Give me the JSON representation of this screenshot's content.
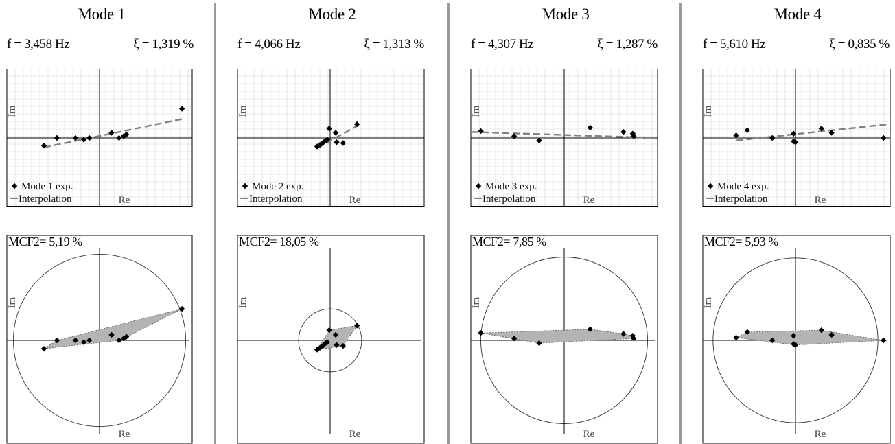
{
  "chart_data": [
    {
      "type": "scatter",
      "title": "Mode 1",
      "frequency": "f = 3,458 Hz",
      "damping": "ξ = 1,319 %",
      "xlabel": "Re",
      "ylabel": "Im",
      "legend": {
        "points": "Mode 1 exp.",
        "line": "Interpolation"
      },
      "mcf_label": "MCF2= 5,19 %",
      "points": [
        [
          -0.6,
          -0.09
        ],
        [
          -0.46,
          0.0
        ],
        [
          -0.26,
          0.0
        ],
        [
          -0.17,
          -0.02
        ],
        [
          -0.11,
          0.0
        ],
        [
          0.13,
          0.06
        ],
        [
          0.21,
          0.0
        ],
        [
          0.26,
          0.02
        ],
        [
          0.29,
          0.04
        ],
        [
          0.89,
          0.34
        ]
      ],
      "fit_line": {
        "x": [
          -0.6,
          0.89
        ],
        "y": [
          -0.11,
          0.22
        ]
      },
      "circle_radius": 0.93
    },
    {
      "type": "scatter",
      "title": "Mode 2",
      "frequency": "f = 4,066 Hz",
      "damping": "ξ = 1,313 %",
      "xlabel": "Re",
      "ylabel": "Im",
      "legend": {
        "points": "Mode 2 exp.",
        "line": "Interpolation"
      },
      "mcf_label": "MCF2= 18,05 %",
      "points": [
        [
          -0.14,
          -0.1
        ],
        [
          -0.11,
          -0.08
        ],
        [
          -0.08,
          -0.06
        ],
        [
          -0.05,
          -0.03
        ],
        [
          -0.03,
          -0.02
        ],
        [
          -0.01,
          0.11
        ],
        [
          0.06,
          0.06
        ],
        [
          0.07,
          -0.05
        ],
        [
          0.14,
          -0.06
        ],
        [
          0.29,
          0.16
        ]
      ],
      "fit_line": {
        "x": [
          -0.14,
          0.29
        ],
        "y": [
          -0.12,
          0.14
        ]
      },
      "circle_radius": 0.34
    },
    {
      "type": "scatter",
      "title": "Mode 3",
      "frequency": "f = 4,307 Hz",
      "damping": "ξ = 1,287 %",
      "xlabel": "Re",
      "ylabel": "Im",
      "legend": {
        "points": "Mode 3 exp.",
        "line": "Interpolation"
      },
      "mcf_label": "MCF2= 7,85 %",
      "points": [
        [
          -0.9,
          0.08
        ],
        [
          -0.54,
          0.02
        ],
        [
          -0.27,
          -0.03
        ],
        [
          0.28,
          0.12
        ],
        [
          0.64,
          0.07
        ],
        [
          0.74,
          0.05
        ],
        [
          0.75,
          0.02
        ]
      ],
      "fit_line": {
        "x": [
          -1.0,
          1.0
        ],
        "y": [
          0.07,
          0.0
        ]
      },
      "circle_radius": 0.9
    },
    {
      "type": "scatter",
      "title": "Mode 4",
      "frequency": "f = 5,610 Hz",
      "damping": "ξ = 0,835 %",
      "xlabel": "Re",
      "ylabel": "Im",
      "legend": {
        "points": "Mode 4 exp.",
        "line": "Interpolation"
      },
      "mcf_label": "MCF2= 5,93 %",
      "points": [
        [
          -0.64,
          0.03
        ],
        [
          -0.52,
          0.09
        ],
        [
          -0.25,
          0.0
        ],
        [
          -0.02,
          0.05
        ],
        [
          -0.02,
          -0.04
        ],
        [
          0.0,
          -0.05
        ],
        [
          0.28,
          0.11
        ],
        [
          0.39,
          0.06
        ],
        [
          0.95,
          0.0
        ]
      ],
      "fit_line": {
        "x": [
          -0.64,
          1.0
        ],
        "y": [
          -0.03,
          0.16
        ]
      },
      "circle_radius": 0.89
    }
  ],
  "colors": {
    "point": "#000000",
    "fit_line": "#808080",
    "hull_fill": "#b4b4b4",
    "grid": "#d2d2d2",
    "separator": "#9a9a9a"
  }
}
